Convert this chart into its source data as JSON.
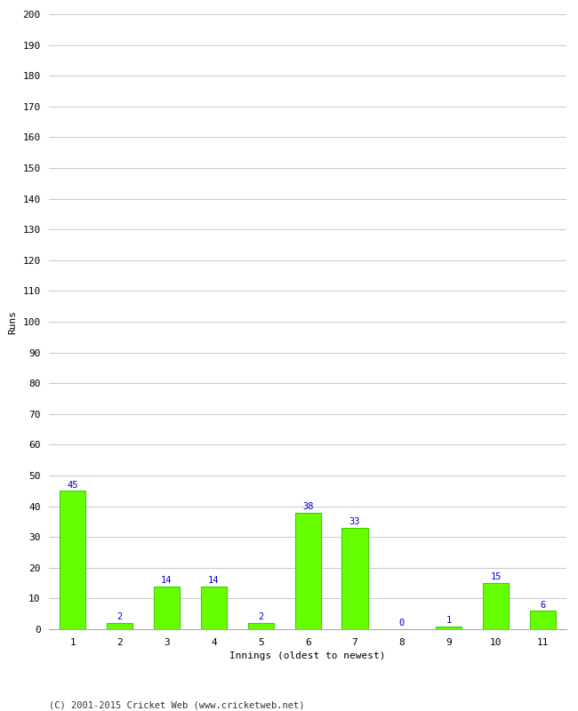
{
  "categories": [
    "1",
    "2",
    "3",
    "4",
    "5",
    "6",
    "7",
    "8",
    "9",
    "10",
    "11"
  ],
  "values": [
    45,
    2,
    14,
    14,
    2,
    38,
    33,
    0,
    1,
    15,
    6
  ],
  "bar_color": "#66ff00",
  "bar_edgecolor": "#44cc00",
  "label_color": "#0000cc",
  "xlabel": "Innings (oldest to newest)",
  "ylabel": "Runs",
  "ylim": [
    0,
    200
  ],
  "yticks": [
    0,
    10,
    20,
    30,
    40,
    50,
    60,
    70,
    80,
    90,
    100,
    110,
    120,
    130,
    140,
    150,
    160,
    170,
    180,
    190,
    200
  ],
  "footer": "(C) 2001-2015 Cricket Web (www.cricketweb.net)",
  "background_color": "#ffffff",
  "grid_color": "#c8c8c8",
  "label_fontsize": 7.5,
  "axis_fontsize": 8,
  "ylabel_fontsize": 8,
  "xlabel_fontsize": 8,
  "footer_fontsize": 7.5,
  "bar_width": 0.55
}
